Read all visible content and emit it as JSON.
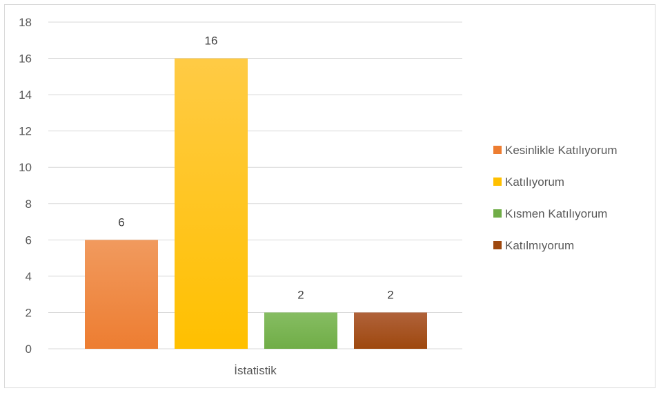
{
  "chart_data": {
    "type": "bar",
    "categories": [
      "İstatistik"
    ],
    "series": [
      {
        "name": "Kesinlikle Katılıyorum",
        "values": [
          6
        ],
        "color": "#ED7D31",
        "color_top": "#F19A5E"
      },
      {
        "name": "Katılıyorum",
        "values": [
          16
        ],
        "color": "#FFC000",
        "color_top": "#FFCB45"
      },
      {
        "name": "Kısmen Katılıyorum",
        "values": [
          2
        ],
        "color": "#70AD47",
        "color_top": "#86BD62"
      },
      {
        "name": "Katılmıyorum",
        "values": [
          2
        ],
        "color": "#9E480E",
        "color_top": "#B0623A"
      }
    ],
    "y_ticks": [
      "0",
      "2",
      "4",
      "6",
      "8",
      "10",
      "12",
      "14",
      "16",
      "18"
    ],
    "ylim": [
      0,
      18
    ],
    "grid": true,
    "legend_position": "right",
    "title": "",
    "xlabel": "",
    "ylabel": ""
  }
}
